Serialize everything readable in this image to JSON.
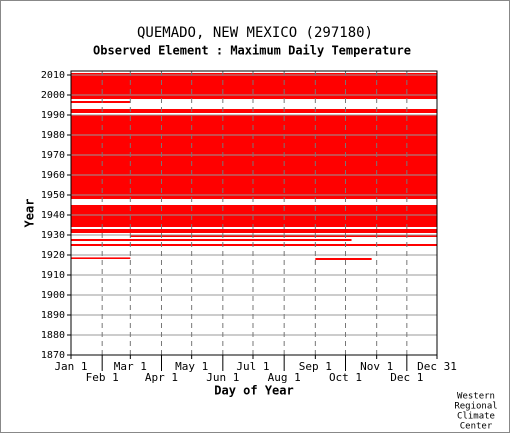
{
  "chart_data": {
    "type": "coverage",
    "title": "QUEMADO, NEW MEXICO   (297180)",
    "subtitle": "Observed Element : Maximum Daily Temperature",
    "xlabel": "Day of Year",
    "ylabel": "Year",
    "footer": [
      "Western",
      "Regional",
      "Climate",
      "Center"
    ],
    "color": "#ff0000",
    "xlim": [
      1,
      365
    ],
    "ylim": [
      1870,
      2012
    ],
    "xticks": [
      {
        "value": 1,
        "label": "Jan 1"
      },
      {
        "value": 32,
        "label": "Feb 1"
      },
      {
        "value": 60,
        "label": "Mar 1"
      },
      {
        "value": 91,
        "label": "Apr 1"
      },
      {
        "value": 121,
        "label": "May 1"
      },
      {
        "value": 152,
        "label": "Jun 1"
      },
      {
        "value": 182,
        "label": "Jul 1"
      },
      {
        "value": 213,
        "label": "Aug 1"
      },
      {
        "value": 244,
        "label": "Sep 1"
      },
      {
        "value": 274,
        "label": "Oct 1"
      },
      {
        "value": 305,
        "label": "Nov 1"
      },
      {
        "value": 335,
        "label": "Dec 1"
      },
      {
        "value": 365,
        "label": "Dec 31"
      }
    ],
    "yticks": [
      1870,
      1880,
      1890,
      1900,
      1910,
      1920,
      1930,
      1940,
      1950,
      1960,
      1970,
      1980,
      1990,
      2000,
      2010
    ],
    "grid": true,
    "coverage": [
      [
        1998,
        2011,
        1,
        365
      ],
      [
        1996,
        1997,
        1,
        60
      ],
      [
        1991,
        1993,
        1,
        365
      ],
      [
        1948,
        1990,
        1,
        365
      ],
      [
        1934,
        1945,
        1,
        365
      ],
      [
        1931,
        1933,
        1,
        365
      ],
      [
        1929,
        1930,
        60,
        365
      ],
      [
        1927,
        1928,
        1,
        280
      ],
      [
        1924.5,
        1925.5,
        1,
        365
      ],
      [
        1918,
        1918.8,
        1,
        60
      ],
      [
        1917.5,
        1918.5,
        244,
        300
      ]
    ]
  }
}
